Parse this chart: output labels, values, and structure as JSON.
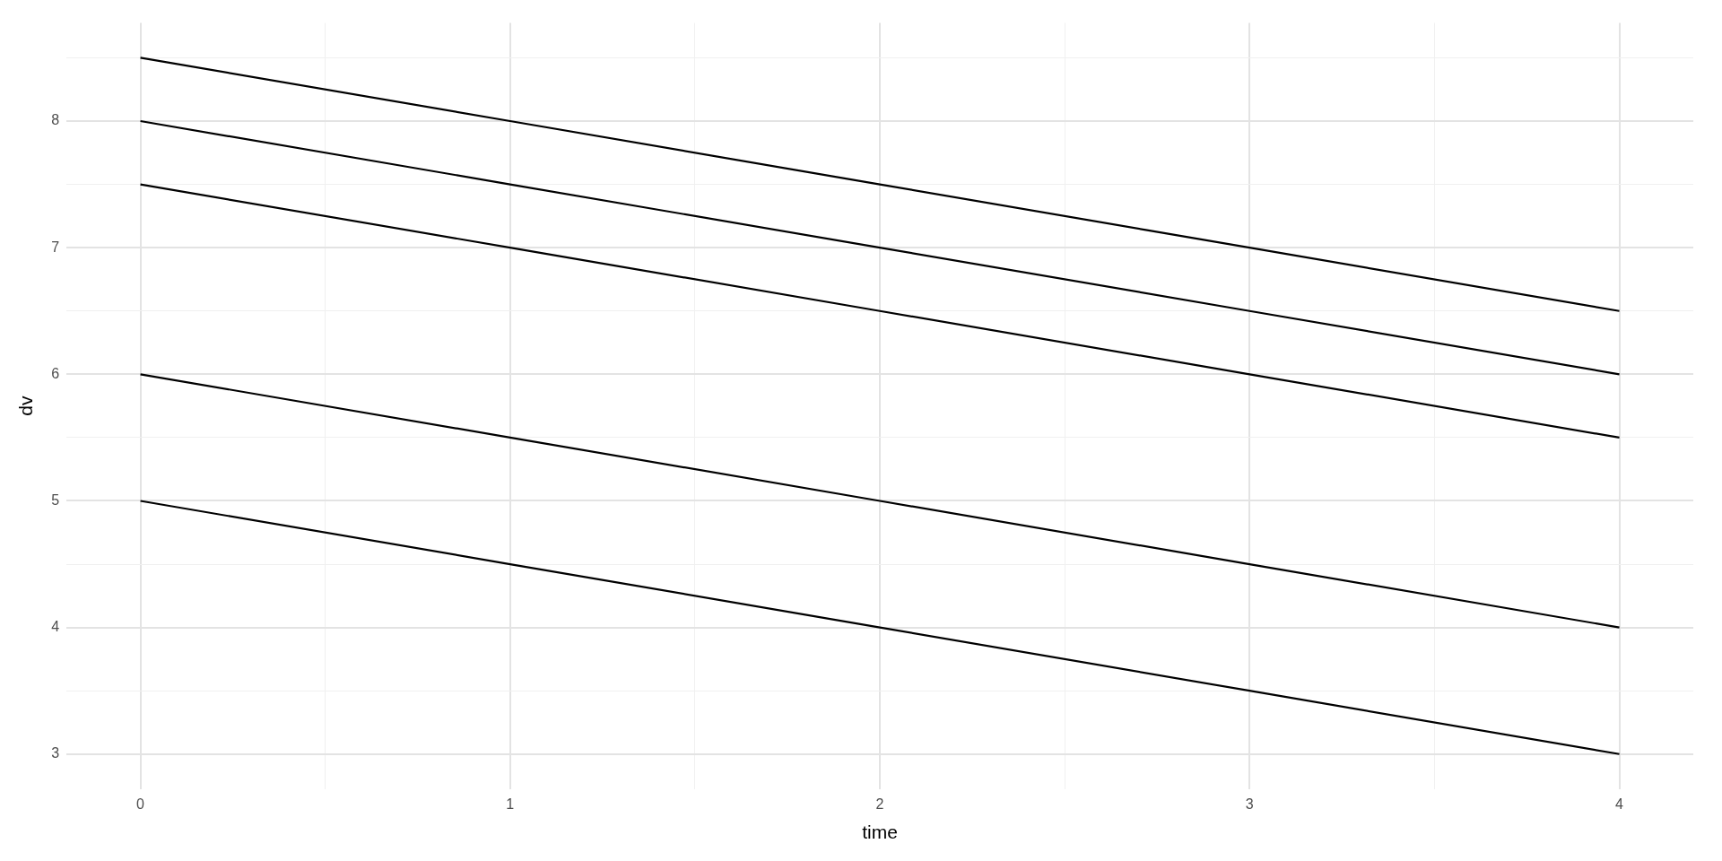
{
  "chart_data": {
    "type": "line",
    "xlabel": "time",
    "ylabel": "dv",
    "x": [
      0,
      1,
      2,
      3,
      4
    ],
    "series": [
      {
        "color": "#000000",
        "values": [
          8.5,
          8,
          7.5,
          7,
          6.5
        ]
      },
      {
        "color": "#000000",
        "values": [
          8,
          7.5,
          7,
          6.5,
          6
        ]
      },
      {
        "color": "#000000",
        "values": [
          7.5,
          7,
          6.5,
          6,
          5.5
        ]
      },
      {
        "color": "#000000",
        "values": [
          6,
          5.5,
          5,
          4.5,
          4
        ]
      },
      {
        "color": "#000000",
        "values": [
          5,
          4.5,
          4,
          3.5,
          3
        ]
      }
    ],
    "xlim": [
      -0.2,
      4.2
    ],
    "ylim": [
      2.725,
      8.775
    ],
    "xticks": [
      0,
      {
        "value": 0.5,
        "label": null
      },
      1,
      {
        "value": 1.5,
        "label": null
      },
      2,
      {
        "value": 2.5,
        "label": null
      },
      3,
      {
        "value": 3.5,
        "label": null
      },
      4
    ],
    "yticks": [
      3,
      {
        "value": 3.5,
        "label": null
      },
      4,
      {
        "value": 4.5,
        "label": null
      },
      5,
      {
        "value": 5.5,
        "label": null
      },
      6,
      {
        "value": 6.5,
        "label": null
      },
      7,
      {
        "value": 7.5,
        "label": null
      },
      8,
      {
        "value": 8.5,
        "label": null
      }
    ],
    "grid": true,
    "legend": false,
    "marker": "none",
    "line_style": "solid"
  }
}
